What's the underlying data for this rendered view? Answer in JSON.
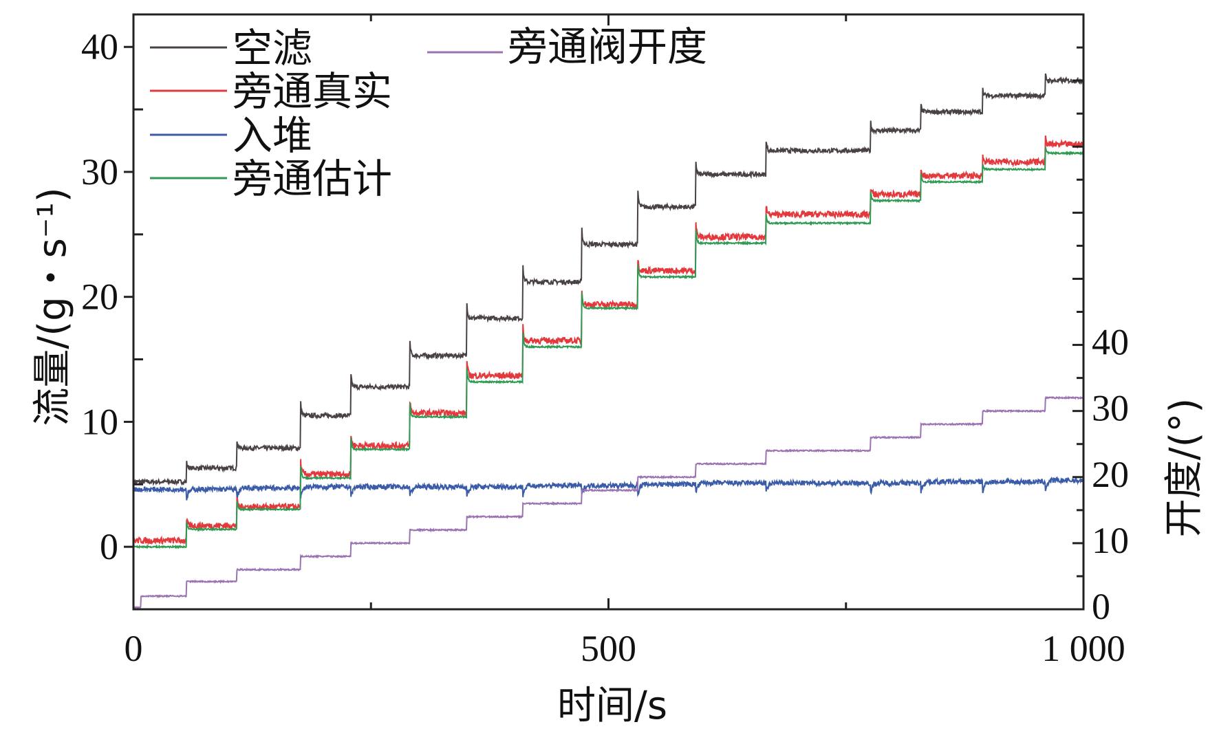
{
  "chart_data": {
    "type": "line",
    "title": "",
    "xlabel": "时间/s",
    "ylabel": "流量/(g・s⁻¹)",
    "y2label": "开度/(°)",
    "xlim": [
      0,
      1000
    ],
    "ylim": [
      -5,
      42.6
    ],
    "y2lim": [
      0,
      90
    ],
    "x_ticks": [
      0,
      500,
      1000
    ],
    "x_tick_labels": [
      "0",
      "500",
      "1 000"
    ],
    "y_ticks": [
      0,
      10,
      20,
      30,
      40
    ],
    "y_tick_labels": [
      "0",
      "10",
      "20",
      "30",
      "40"
    ],
    "y2_ticks": [
      0,
      10,
      20,
      30,
      40
    ],
    "y2_tick_labels": [
      "0",
      "10",
      "20",
      "30",
      "40"
    ],
    "legend_position": "top-left",
    "step_times": [
      0,
      56,
      109,
      176,
      229,
      291,
      351,
      410,
      472,
      531,
      592,
      666,
      776,
      829,
      894,
      960
    ],
    "series": [
      {
        "name": "空滤",
        "axis": "left",
        "color": "#4a4242",
        "noise": 0.18,
        "values": [
          5.2,
          6.3,
          7.9,
          10.5,
          12.8,
          15.3,
          18.3,
          21.2,
          24.2,
          27.2,
          29.8,
          31.7,
          33.3,
          34.8,
          36.1,
          37.3
        ]
      },
      {
        "name": "旁通真实",
        "axis": "left",
        "color": "#e3393c",
        "noise": 0.25,
        "values": [
          0.5,
          1.7,
          3.2,
          5.8,
          8.1,
          10.7,
          13.7,
          16.5,
          19.4,
          22.1,
          24.8,
          26.6,
          28.2,
          29.7,
          30.8,
          32.2
        ]
      },
      {
        "name": "入堆",
        "axis": "left",
        "color": "#3a5ba8",
        "noise": 0.2,
        "values": [
          4.6,
          4.6,
          4.7,
          4.8,
          4.8,
          4.8,
          4.8,
          4.9,
          4.9,
          5.0,
          5.1,
          5.1,
          5.1,
          5.2,
          5.2,
          5.3
        ]
      },
      {
        "name": "旁通估计",
        "axis": "left",
        "color": "#2e9a52",
        "noise": 0.06,
        "values": [
          0.0,
          1.4,
          3.0,
          5.5,
          7.8,
          10.4,
          13.2,
          16.0,
          19.1,
          21.6,
          24.3,
          25.9,
          27.7,
          29.2,
          30.2,
          31.5
        ]
      },
      {
        "name": "旁通阀开度",
        "axis": "right",
        "color": "#9b72b2",
        "noise": 0.1,
        "values": [
          2,
          4.2,
          6,
          8,
          10,
          12,
          14,
          16,
          18,
          20,
          22,
          24,
          26,
          28,
          30,
          32
        ]
      }
    ]
  }
}
